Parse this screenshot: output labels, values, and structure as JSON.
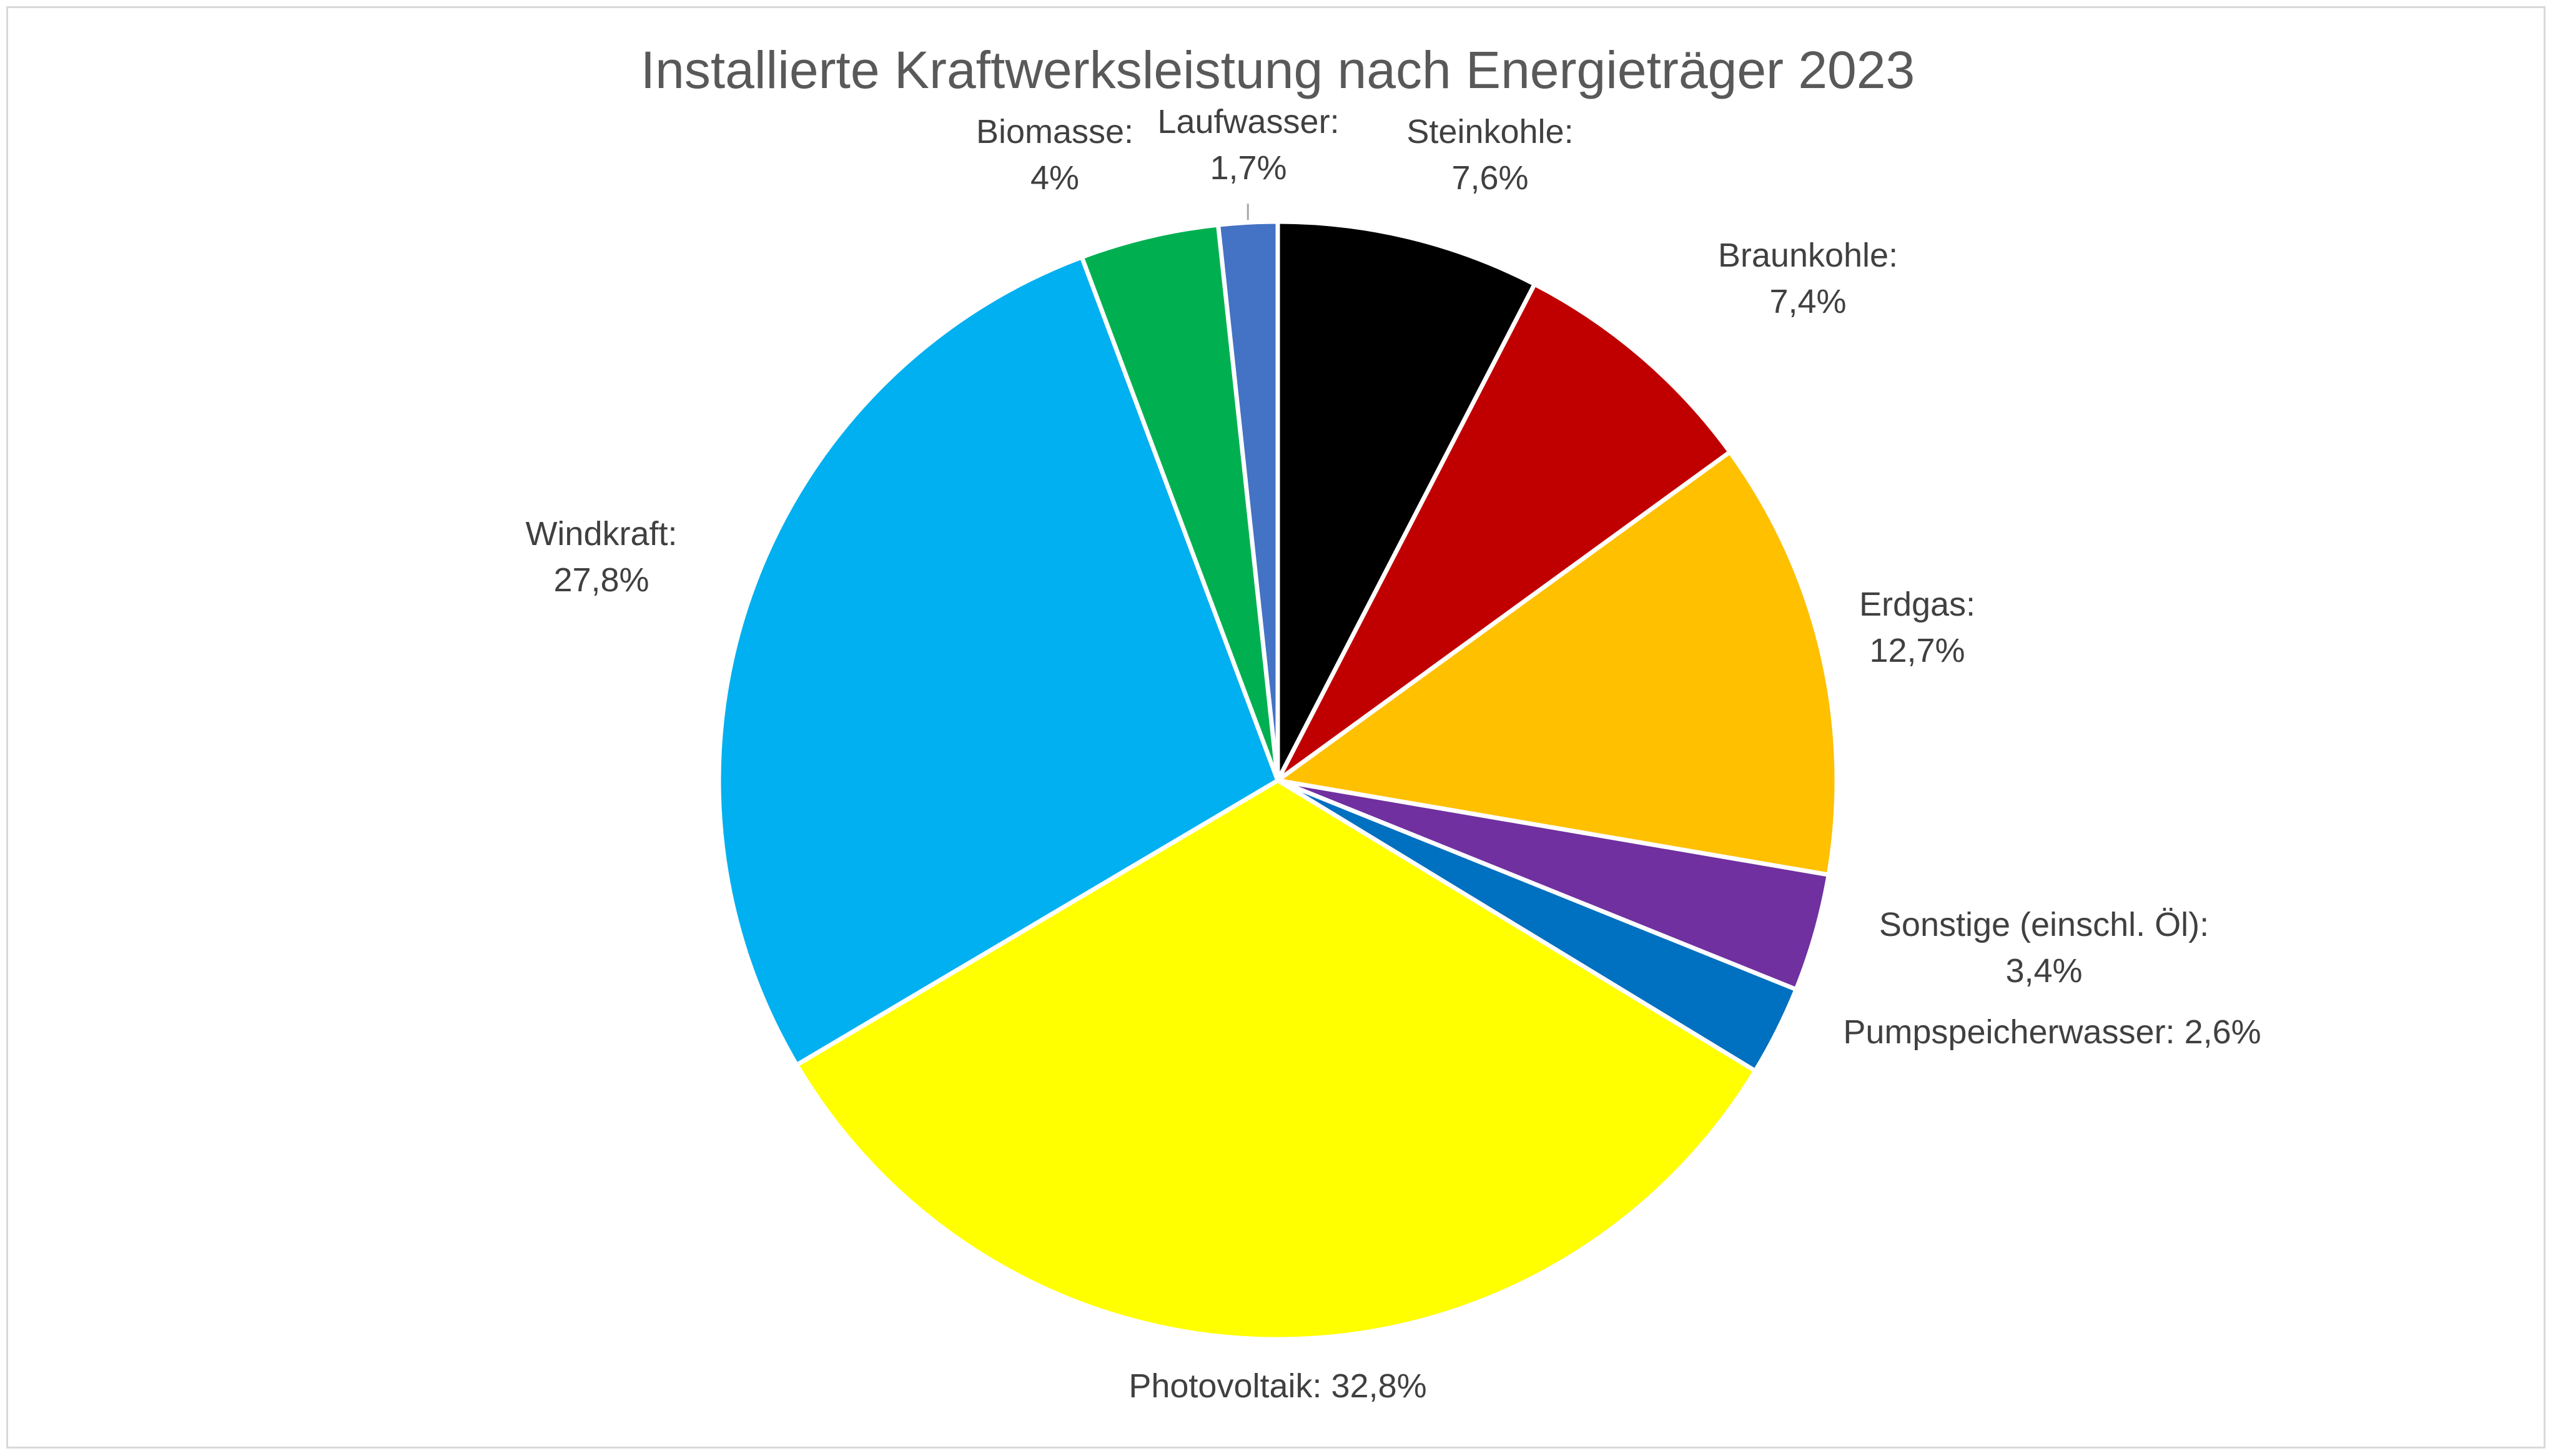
{
  "chart_data": {
    "type": "pie",
    "title": "Installierte Kraftwerksleistung nach Energieträger 2023",
    "slices": [
      {
        "name": "Steinkohle",
        "value": 7.6,
        "name_text": "Steinkohle:",
        "value_text": "7,6%",
        "color": "#000000"
      },
      {
        "name": "Braunkohle",
        "value": 7.4,
        "name_text": "Braunkohle:",
        "value_text": "7,4%",
        "color": "#C00000"
      },
      {
        "name": "Erdgas",
        "value": 12.7,
        "name_text": "Erdgas:",
        "value_text": "12,7%",
        "color": "#FFC000"
      },
      {
        "name": "Sonstige (einschl. Öl)",
        "value": 3.4,
        "name_text": "Sonstige (einschl. Öl):",
        "value_text": "3,4%",
        "color": "#7030A0"
      },
      {
        "name": "Pumpspeicherwasser",
        "value": 2.6,
        "name_text": "Pumpspeicherwasser: 2,6%",
        "value_text": "",
        "color": "#0070C0"
      },
      {
        "name": "Photovoltaik",
        "value": 32.8,
        "name_text": "Photovoltaik: 32,8%",
        "value_text": "",
        "color": "#FFFF00"
      },
      {
        "name": "Windkraft",
        "value": 27.8,
        "name_text": "Windkraft:",
        "value_text": "27,8%",
        "color": "#00B0F0"
      },
      {
        "name": "Biomasse",
        "value": 4.0,
        "name_text": "Biomasse:",
        "value_text": "4%",
        "color": "#00B050"
      },
      {
        "name": "Laufwasser",
        "value": 1.7,
        "name_text": "Laufwasser:",
        "value_text": "1,7%",
        "color": "#4472C4"
      }
    ],
    "start_angle_deg": 0,
    "direction": "clockwise",
    "legend": "none",
    "data_labels": "outside"
  }
}
